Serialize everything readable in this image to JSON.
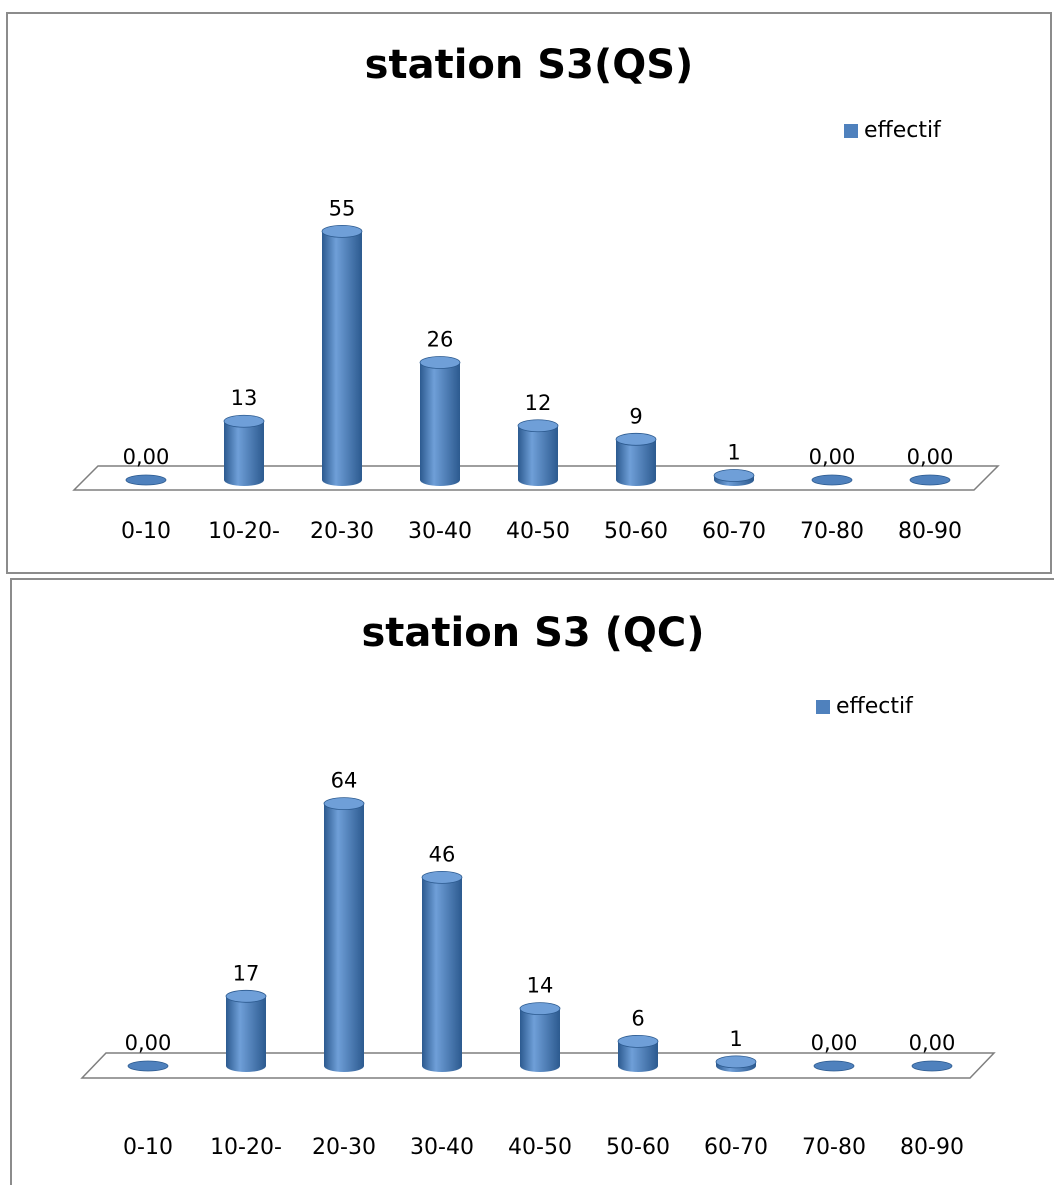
{
  "colors": {
    "bar": "#4f81bd",
    "bar_dark": "#2c5a8f",
    "bar_light": "#6f9fd8"
  },
  "chart_data": [
    {
      "type": "bar",
      "title": "station S3(QS)",
      "categories": [
        "0-10",
        "10-20-",
        "20-30",
        "30-40",
        "40-50",
        "50-60",
        "60-70",
        "70-80",
        "80-90"
      ],
      "series": [
        {
          "name": "effectif",
          "values": [
            0,
            13,
            55,
            26,
            12,
            9,
            1,
            0,
            0
          ]
        }
      ],
      "data_labels": [
        "0,00",
        "13",
        "55",
        "26",
        "12",
        "9",
        "1",
        "0,00",
        "0,00"
      ],
      "legend_position": "top-right",
      "grid": false
    },
    {
      "type": "bar",
      "title": "station S3 (QC)",
      "categories": [
        "0-10",
        "10-20-",
        "20-30",
        "30-40",
        "40-50",
        "50-60",
        "60-70",
        "70-80",
        "80-90"
      ],
      "series": [
        {
          "name": "effectif",
          "values": [
            0,
            17,
            64,
            46,
            14,
            6,
            1,
            0,
            0
          ]
        }
      ],
      "data_labels": [
        "0,00",
        "17",
        "64",
        "46",
        "14",
        "6",
        "1",
        "0,00",
        "0,00"
      ],
      "legend_position": "top-right",
      "grid": false
    }
  ]
}
